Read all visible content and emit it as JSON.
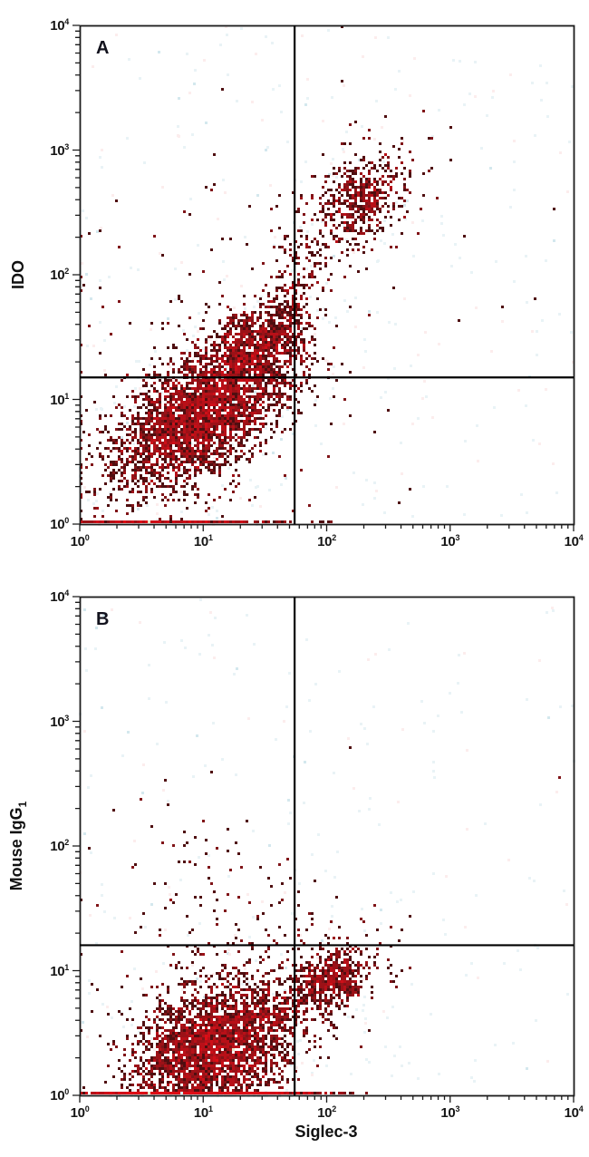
{
  "figure": {
    "background": "#ffffff",
    "frame_color": "#1b1b1b",
    "gate_color": "#000000",
    "tick_base": "10",
    "density_colors": {
      "d1": "#4f0e10",
      "d1b": "#801418",
      "d2": "#9c1117",
      "d3": "#b81018",
      "d5": "#cf0f18",
      "d7": "#de0d15",
      "speck_warm": "#e9e3c4",
      "speck_cool": "#d6ecee",
      "haze_blue": "#e9f3f6",
      "haze_pink": "#fceded",
      "haze_strong": "#d4e8ee"
    }
  },
  "chart_data": [
    {
      "type": "scatter",
      "panel_label": "A",
      "xlabel": "Siglec-3",
      "ylabel": "IDO",
      "ylabel_sub": "",
      "xscale": "log",
      "yscale": "log",
      "xlim": [
        1,
        10000
      ],
      "ylim": [
        1,
        10000
      ],
      "x_tick_exponents": [
        0,
        1,
        2,
        3,
        4
      ],
      "y_tick_exponents": [
        0,
        1,
        2,
        3,
        4
      ],
      "grid": false,
      "quadrant_gate": {
        "x": 55,
        "y": 15
      },
      "seed": 7,
      "haze_n": 520,
      "populations": [
        {
          "name": "double-negative-main",
          "log_center": [
            0.98,
            0.88
          ],
          "log_sd": [
            0.36,
            0.3
          ],
          "corr": 0.55,
          "n": 3200
        },
        {
          "name": "shoulder",
          "log_center": [
            1.38,
            1.42
          ],
          "log_sd": [
            0.2,
            0.16
          ],
          "corr": 0.45,
          "n": 650
        },
        {
          "name": "gate-smear",
          "log_center": [
            1.7,
            1.5
          ],
          "log_sd": [
            0.09,
            0.26
          ],
          "corr": 0.3,
          "n": 220
        },
        {
          "name": "bridge",
          "log_center": [
            1.8,
            1.98
          ],
          "log_sd": [
            0.2,
            0.28
          ],
          "corr": 0.75,
          "n": 150
        },
        {
          "name": "double-positive",
          "log_center": [
            2.28,
            2.62
          ],
          "log_sd": [
            0.17,
            0.16
          ],
          "corr": 0.35,
          "n": 420
        },
        {
          "name": "positive-halo",
          "log_center": [
            2.22,
            2.5
          ],
          "log_sd": [
            0.34,
            0.34
          ],
          "corr": 0.4,
          "n": 150
        },
        {
          "name": "sparse-outliers",
          "log_center": [
            1.1,
            1.3
          ],
          "log_sd": [
            0.85,
            0.85
          ],
          "corr": 0.1,
          "n": 130
        },
        {
          "name": "bottom-edge-pileup",
          "log_center": [
            0.7,
            0
          ],
          "log_sd": [
            0.5,
            0
          ],
          "corr": 0,
          "n": 260,
          "fixed_logy": 0
        }
      ],
      "singles_log": [
        [
          1.15,
          3.48
        ],
        [
          2.13,
          3.56
        ],
        [
          3.85,
          2.52
        ],
        [
          1.08,
          2.72
        ],
        [
          0.3,
          2.6
        ],
        [
          2.62,
          3.05
        ]
      ]
    },
    {
      "type": "scatter",
      "panel_label": "B",
      "xlabel": "Siglec-3",
      "ylabel": "Mouse IgG",
      "ylabel_sub": "1",
      "xscale": "log",
      "yscale": "log",
      "xlim": [
        1,
        10000
      ],
      "ylim": [
        1,
        10000
      ],
      "x_tick_exponents": [
        0,
        1,
        2,
        3,
        4
      ],
      "y_tick_exponents": [
        0,
        1,
        2,
        3,
        4
      ],
      "grid": false,
      "quadrant_gate": {
        "x": 55,
        "y": 16
      },
      "seed": 11,
      "haze_n": 430,
      "populations": [
        {
          "name": "negative-main",
          "log_center": [
            1.08,
            0.38
          ],
          "log_sd": [
            0.32,
            0.27
          ],
          "corr": 0.25,
          "n": 3000
        },
        {
          "name": "bottom-edge-pileup",
          "log_center": [
            1.0,
            0
          ],
          "log_sd": [
            0.45,
            0
          ],
          "corr": 0,
          "n": 900,
          "fixed_logy": 0
        },
        {
          "name": "siglec3-positive",
          "log_center": [
            2.04,
            0.95
          ],
          "log_sd": [
            0.15,
            0.12
          ],
          "corr": 0.2,
          "n": 420
        },
        {
          "name": "positive-halo",
          "log_center": [
            2.05,
            0.92
          ],
          "log_sd": [
            0.3,
            0.24
          ],
          "corr": 0.3,
          "n": 140
        },
        {
          "name": "bridge",
          "log_center": [
            1.68,
            0.72
          ],
          "log_sd": [
            0.2,
            0.16
          ],
          "corr": 0.5,
          "n": 160
        },
        {
          "name": "upper-left-sparse",
          "log_center": [
            0.95,
            2.0
          ],
          "log_sd": [
            0.38,
            0.28
          ],
          "corr": 0,
          "n": 45
        },
        {
          "name": "mid-scatter",
          "log_center": [
            1.35,
            1.1
          ],
          "log_sd": [
            0.5,
            0.35
          ],
          "corr": 0.2,
          "n": 130
        }
      ],
      "singles_log": [
        [
          2.18,
          2.78
        ],
        [
          3.88,
          2.55
        ],
        [
          2.6,
          1.32
        ],
        [
          0.28,
          2.28
        ]
      ]
    }
  ]
}
